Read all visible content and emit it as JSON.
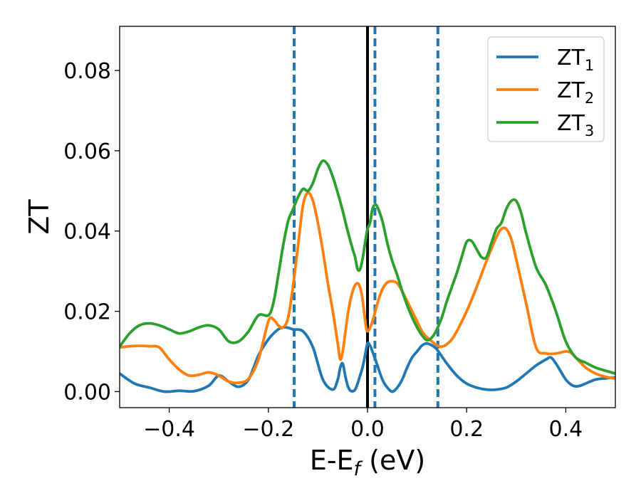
{
  "chart_data": {
    "type": "line",
    "title": "",
    "xlabel": "E-E",
    "xlabel_sub": "f",
    "xlabel_unit": " (eV)",
    "ylabel": "ZT",
    "xlim": [
      -0.5,
      0.5
    ],
    "ylim": [
      -0.004,
      0.091
    ],
    "xticks": [
      -0.4,
      -0.2,
      0.0,
      0.2,
      0.4
    ],
    "xtick_labels": [
      "−0.4",
      "−0.2",
      "0.0",
      "0.2",
      "0.4"
    ],
    "yticks": [
      0.0,
      0.02,
      0.04,
      0.06,
      0.08
    ],
    "ytick_labels": [
      "0.00",
      "0.02",
      "0.04",
      "0.06",
      "0.08"
    ],
    "grid": false,
    "legend_position": "top-right",
    "vertical_lines": [
      {
        "x": 0.0,
        "style": "solid",
        "color": "#000000"
      },
      {
        "x": -0.148,
        "style": "dashed",
        "color": "#1f77b4"
      },
      {
        "x": 0.015,
        "style": "dashed",
        "color": "#1f77b4"
      },
      {
        "x": 0.142,
        "style": "dashed",
        "color": "#1f77b4"
      }
    ],
    "series": [
      {
        "name": "ZT",
        "name_sub": "1",
        "color": "#1f77b4",
        "x": [
          -0.5,
          -0.47,
          -0.44,
          -0.41,
          -0.38,
          -0.35,
          -0.32,
          -0.3,
          -0.28,
          -0.26,
          -0.24,
          -0.22,
          -0.2,
          -0.18,
          -0.165,
          -0.15,
          -0.13,
          -0.11,
          -0.09,
          -0.07,
          -0.06,
          -0.055,
          -0.05,
          -0.045,
          -0.04,
          -0.035,
          -0.03,
          -0.025,
          -0.02,
          -0.015,
          -0.01,
          -0.005,
          0.0,
          0.005,
          0.01,
          0.02,
          0.03,
          0.04,
          0.05,
          0.06,
          0.07,
          0.08,
          0.09,
          0.1,
          0.11,
          0.12,
          0.13,
          0.14,
          0.16,
          0.18,
          0.2,
          0.22,
          0.24,
          0.26,
          0.28,
          0.3,
          0.32,
          0.34,
          0.36,
          0.37,
          0.38,
          0.39,
          0.4,
          0.41,
          0.42,
          0.43,
          0.44,
          0.46,
          0.48,
          0.5
        ],
        "y": [
          0.0045,
          0.002,
          0.001,
          0.0,
          0.0002,
          0.0001,
          0.0015,
          0.004,
          0.0025,
          0.0012,
          0.003,
          0.009,
          0.013,
          0.0155,
          0.016,
          0.0155,
          0.015,
          0.011,
          0.003,
          0.0005,
          0.003,
          0.006,
          0.007,
          0.004,
          0.0015,
          0.0003,
          0.0001,
          0.0005,
          0.002,
          0.004,
          0.006,
          0.009,
          0.012,
          0.0115,
          0.01,
          0.0065,
          0.003,
          0.001,
          0.0,
          0.001,
          0.003,
          0.006,
          0.0085,
          0.01,
          0.0115,
          0.012,
          0.0115,
          0.0105,
          0.007,
          0.004,
          0.002,
          0.001,
          0.0005,
          0.0005,
          0.001,
          0.0025,
          0.0045,
          0.0065,
          0.008,
          0.0085,
          0.007,
          0.005,
          0.003,
          0.0018,
          0.0013,
          0.0015,
          0.002,
          0.003,
          0.0033,
          0.0035
        ]
      },
      {
        "name": "ZT",
        "name_sub": "2",
        "color": "#ff7f0e",
        "x": [
          -0.5,
          -0.48,
          -0.46,
          -0.44,
          -0.42,
          -0.4,
          -0.38,
          -0.36,
          -0.34,
          -0.32,
          -0.3,
          -0.28,
          -0.26,
          -0.24,
          -0.22,
          -0.2,
          -0.19,
          -0.18,
          -0.17,
          -0.16,
          -0.15,
          -0.14,
          -0.13,
          -0.12,
          -0.11,
          -0.1,
          -0.09,
          -0.08,
          -0.07,
          -0.06,
          -0.055,
          -0.05,
          -0.045,
          -0.04,
          -0.035,
          -0.03,
          -0.025,
          -0.02,
          -0.015,
          -0.01,
          -0.005,
          0.0,
          0.01,
          0.02,
          0.03,
          0.04,
          0.05,
          0.06,
          0.07,
          0.08,
          0.09,
          0.1,
          0.11,
          0.12,
          0.13,
          0.14,
          0.15,
          0.16,
          0.17,
          0.18,
          0.2,
          0.22,
          0.24,
          0.26,
          0.27,
          0.28,
          0.29,
          0.3,
          0.32,
          0.34,
          0.36,
          0.38,
          0.4,
          0.41,
          0.42,
          0.44,
          0.46,
          0.48,
          0.5
        ],
        "y": [
          0.011,
          0.0113,
          0.0114,
          0.0113,
          0.011,
          0.008,
          0.0055,
          0.004,
          0.0042,
          0.0048,
          0.004,
          0.0025,
          0.0022,
          0.0032,
          0.008,
          0.0175,
          0.018,
          0.0165,
          0.016,
          0.0185,
          0.0265,
          0.0365,
          0.0465,
          0.0495,
          0.0475,
          0.042,
          0.035,
          0.027,
          0.02,
          0.012,
          0.008,
          0.01,
          0.0145,
          0.019,
          0.0225,
          0.025,
          0.0265,
          0.027,
          0.026,
          0.023,
          0.018,
          0.015,
          0.0175,
          0.022,
          0.0255,
          0.0272,
          0.0275,
          0.027,
          0.025,
          0.0225,
          0.02,
          0.0175,
          0.015,
          0.0135,
          0.0125,
          0.0115,
          0.0112,
          0.0118,
          0.013,
          0.015,
          0.02,
          0.026,
          0.0325,
          0.0385,
          0.0405,
          0.0405,
          0.038,
          0.033,
          0.022,
          0.011,
          0.0095,
          0.0095,
          0.01,
          0.0097,
          0.0085,
          0.006,
          0.0045,
          0.0037,
          0.0032
        ]
      },
      {
        "name": "ZT",
        "name_sub": "3",
        "color": "#2ca02c",
        "x": [
          -0.5,
          -0.48,
          -0.46,
          -0.44,
          -0.42,
          -0.4,
          -0.38,
          -0.36,
          -0.34,
          -0.32,
          -0.3,
          -0.28,
          -0.26,
          -0.24,
          -0.22,
          -0.2,
          -0.19,
          -0.18,
          -0.17,
          -0.16,
          -0.15,
          -0.14,
          -0.13,
          -0.12,
          -0.11,
          -0.1,
          -0.09,
          -0.08,
          -0.07,
          -0.06,
          -0.05,
          -0.04,
          -0.03,
          -0.025,
          -0.02,
          -0.015,
          -0.01,
          -0.005,
          0.0,
          0.005,
          0.01,
          0.015,
          0.02,
          0.03,
          0.04,
          0.05,
          0.06,
          0.07,
          0.08,
          0.09,
          0.1,
          0.11,
          0.12,
          0.13,
          0.14,
          0.15,
          0.16,
          0.17,
          0.18,
          0.19,
          0.2,
          0.21,
          0.22,
          0.23,
          0.24,
          0.25,
          0.26,
          0.27,
          0.28,
          0.29,
          0.3,
          0.31,
          0.32,
          0.34,
          0.36,
          0.38,
          0.4,
          0.42,
          0.44,
          0.46,
          0.48,
          0.5
        ],
        "y": [
          0.0112,
          0.0145,
          0.0165,
          0.017,
          0.0165,
          0.0155,
          0.0145,
          0.015,
          0.016,
          0.0165,
          0.0155,
          0.0125,
          0.0125,
          0.015,
          0.019,
          0.019,
          0.022,
          0.029,
          0.0365,
          0.0425,
          0.0455,
          0.0485,
          0.0505,
          0.05,
          0.052,
          0.0555,
          0.0575,
          0.0565,
          0.0535,
          0.0495,
          0.045,
          0.04,
          0.0355,
          0.0335,
          0.0305,
          0.0305,
          0.033,
          0.037,
          0.0405,
          0.042,
          0.0455,
          0.0465,
          0.046,
          0.0425,
          0.037,
          0.0325,
          0.029,
          0.025,
          0.0215,
          0.0185,
          0.016,
          0.014,
          0.0128,
          0.0135,
          0.0155,
          0.0185,
          0.0225,
          0.026,
          0.0295,
          0.0335,
          0.0373,
          0.0375,
          0.0355,
          0.0335,
          0.0335,
          0.037,
          0.0405,
          0.042,
          0.0455,
          0.0475,
          0.0475,
          0.0445,
          0.0395,
          0.031,
          0.0265,
          0.02,
          0.0125,
          0.0085,
          0.0072,
          0.006,
          0.0052,
          0.0045
        ]
      }
    ]
  }
}
